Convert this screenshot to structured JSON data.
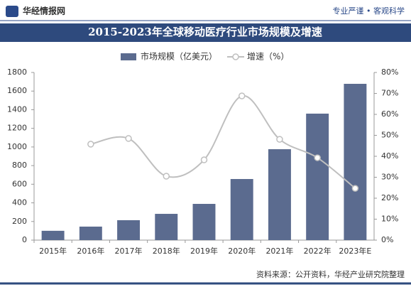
{
  "header": {
    "brand": "华经情报网",
    "slogan": "专业严谨 • 客观科学"
  },
  "chart_data": {
    "type": "bar_line",
    "title": "2015-2023年全球移动医疗行业市场规模及增速",
    "categories": [
      "2015年",
      "2016年",
      "2017年",
      "2018年",
      "2019年",
      "2020年",
      "2021年",
      "2022年",
      "2023年E"
    ],
    "series": [
      {
        "name": "市场规模（亿美元）",
        "color": "#5b6b8f",
        "type": "bar",
        "values": [
          100,
          145,
          214,
          282,
          389,
          656,
          976,
          1358,
          1678
        ]
      },
      {
        "name": "增速（%）",
        "color": "#bfbfbf",
        "type": "line",
        "axis": "y2",
        "values": [
          null,
          45.8,
          48.5,
          30.5,
          38.3,
          68.8,
          48.1,
          39.3,
          24.7
        ]
      }
    ],
    "ylim": [
      0,
      1800
    ],
    "yticks": [
      0,
      200,
      400,
      600,
      800,
      1000,
      1200,
      1400,
      1600,
      1800
    ],
    "y2lim": [
      0,
      80
    ],
    "y2ticks": [
      {
        "value": 0,
        "label": "0%"
      },
      {
        "value": 10,
        "label": "10%"
      },
      {
        "value": 20,
        "label": "20%"
      },
      {
        "value": 30,
        "label": "30%"
      },
      {
        "value": 40,
        "label": "40%"
      },
      {
        "value": 50,
        "label": "50%"
      },
      {
        "value": 60,
        "label": "60%"
      },
      {
        "value": 70,
        "label": "70%"
      },
      {
        "value": 80,
        "label": "80%"
      }
    ],
    "legend": "top",
    "source": "资料来源：公开资料，华经产业研究院整理"
  }
}
